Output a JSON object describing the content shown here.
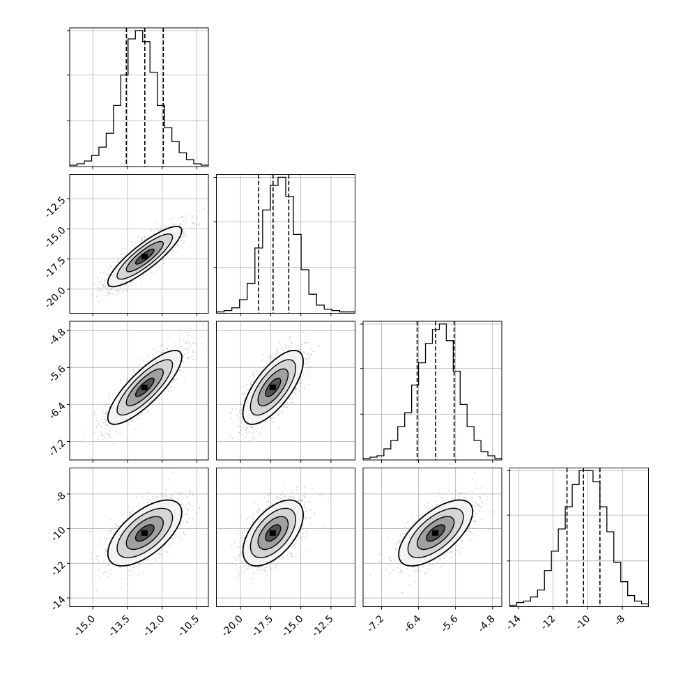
{
  "chart_data": {
    "type": "corner",
    "title": "",
    "parameters": [
      {
        "label": "",
        "range": [
          -16.0,
          -10.0
        ],
        "ticks": [
          "-15.0",
          "-13.5",
          "-12.0",
          "-10.5"
        ],
        "tick_values": [
          -15.0,
          -13.5,
          -12.0,
          -10.5
        ],
        "quantiles": [
          -13.55,
          -12.75,
          -11.95
        ],
        "hist": [
          1,
          2,
          4,
          8,
          14,
          24,
          44,
          66,
          92,
          98,
          90,
          68,
          44,
          28,
          18,
          10,
          5,
          2,
          1
        ]
      },
      {
        "label": "",
        "range": [
          -22.0,
          -10.5
        ],
        "ticks": [
          "-20.0",
          "-17.5",
          "-15.0",
          "-12.5"
        ],
        "tick_values": [
          -20.0,
          -17.5,
          -15.0,
          -12.5
        ],
        "quantiles": [
          -18.5,
          -17.3,
          -16.0
        ],
        "hist": [
          1,
          2,
          4,
          10,
          22,
          48,
          76,
          94,
          100,
          86,
          58,
          32,
          14,
          6,
          3,
          2,
          1,
          1
        ]
      },
      {
        "label": "",
        "range": [
          -7.6,
          -4.6
        ],
        "ticks": [
          "-7.2",
          "-6.4",
          "-5.6",
          "-4.8"
        ],
        "tick_values": [
          -7.2,
          -6.4,
          -5.6,
          -4.8
        ],
        "quantiles": [
          -6.43,
          -6.03,
          -5.63
        ],
        "hist": [
          1,
          2,
          3,
          8,
          14,
          24,
          34,
          54,
          70,
          84,
          94,
          98,
          86,
          64,
          40,
          24,
          14,
          6,
          3,
          1
        ]
      },
      {
        "label": "",
        "range": [
          -14.5,
          -6.5
        ],
        "ticks": [
          "-14",
          "-12",
          "-10",
          "-8"
        ],
        "tick_values": [
          -14,
          -12,
          -10,
          -8
        ],
        "quantiles": [
          -11.2,
          -10.25,
          -9.3
        ],
        "hist": [
          1,
          3,
          4,
          7,
          12,
          26,
          40,
          56,
          72,
          88,
          98,
          98,
          90,
          72,
          54,
          32,
          18,
          8,
          4,
          2
        ]
      }
    ],
    "correlations": [
      {
        "row": 1,
        "col": 0,
        "corr": 0.86
      },
      {
        "row": 2,
        "col": 0,
        "corr": 0.82
      },
      {
        "row": 2,
        "col": 1,
        "corr": 0.7
      },
      {
        "row": 3,
        "col": 0,
        "corr": 0.62
      },
      {
        "row": 3,
        "col": 1,
        "corr": 0.55
      },
      {
        "row": 3,
        "col": 2,
        "corr": 0.65
      }
    ],
    "grid": true,
    "quantile_lines": "dashed",
    "colors": {
      "points": "#8c8c8c",
      "lines": "#000000",
      "grid": "#b0b0b0"
    }
  }
}
